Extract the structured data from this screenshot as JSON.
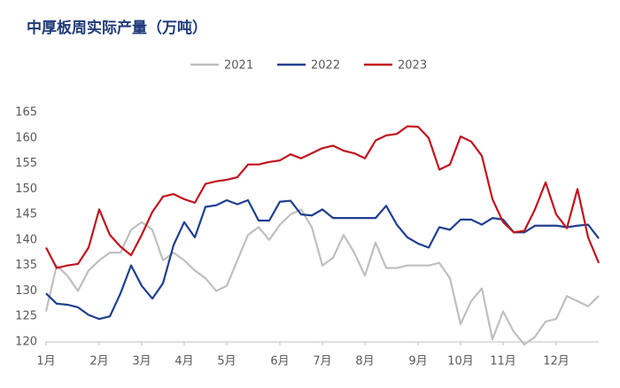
{
  "chart_data": {
    "type": "line",
    "title": "中厚板周实际产量（万吨）",
    "categories": [
      "1月",
      null,
      null,
      null,
      null,
      "2月",
      null,
      null,
      null,
      "3月",
      null,
      null,
      null,
      "4月",
      null,
      null,
      null,
      "5月",
      null,
      null,
      null,
      null,
      "6月",
      null,
      null,
      null,
      "7月",
      null,
      null,
      null,
      "8月",
      null,
      null,
      null,
      null,
      "9月",
      null,
      null,
      null,
      "10月",
      null,
      null,
      null,
      "11月",
      null,
      null,
      null,
      null,
      "12月",
      null,
      null,
      null,
      null
    ],
    "series": [
      {
        "name": "2021",
        "color": "#bfbfbf",
        "values": [
          126,
          135,
          133,
          130,
          134,
          136,
          137.5,
          137.5,
          142,
          143.5,
          142,
          136,
          137.5,
          136,
          134,
          132.5,
          130,
          131,
          136,
          141,
          142.5,
          140,
          143,
          145,
          146,
          142.5,
          135,
          136.5,
          141,
          137.5,
          133,
          139.5,
          134.5,
          134.5,
          135,
          135,
          135,
          135.5,
          132.5,
          123.5,
          128,
          130.5,
          120.5,
          126,
          122,
          119.5,
          121,
          124,
          124.5,
          129,
          128,
          127,
          129
        ]
      },
      {
        "name": "2022",
        "color": "#1f3f8f",
        "values": [
          129.5,
          127.5,
          127.3,
          126.8,
          125.3,
          124.5,
          125,
          129.5,
          135,
          131,
          128.5,
          131.5,
          139,
          143.5,
          140.5,
          146.5,
          146.8,
          147.8,
          147,
          147.8,
          143.8,
          143.8,
          147.5,
          147.7,
          145,
          144.8,
          146,
          144.3,
          144.3,
          144.3,
          144.3,
          144.3,
          146.7,
          143,
          140.5,
          139.3,
          138.5,
          142.5,
          142,
          144,
          144,
          143,
          144.3,
          144,
          141.5,
          141.5,
          142.8,
          142.8,
          142.8,
          142.5,
          142.8,
          143,
          140.3
        ]
      },
      {
        "name": "2023",
        "color": "#c0141e",
        "values": [
          138.5,
          134.5,
          135,
          135.3,
          138.5,
          146,
          141,
          138.7,
          137,
          141,
          145.5,
          148.5,
          149,
          148,
          147.3,
          151,
          151.5,
          151.8,
          152.3,
          154.8,
          154.8,
          155.3,
          155.6,
          156.8,
          156,
          157,
          158,
          158.5,
          157.5,
          157,
          156,
          159.5,
          160.5,
          160.8,
          162.3,
          162.2,
          160,
          153.8,
          154.8,
          160.3,
          159.3,
          156.5,
          148,
          143.5,
          141.5,
          141.8,
          146,
          151.3,
          145,
          142.3,
          150,
          140.5,
          135.5
        ]
      }
    ],
    "ylim": [
      120,
      165
    ],
    "yticks": [
      120,
      125,
      130,
      135,
      140,
      145,
      150,
      155,
      160,
      165
    ],
    "grid": false,
    "legend": "top"
  }
}
